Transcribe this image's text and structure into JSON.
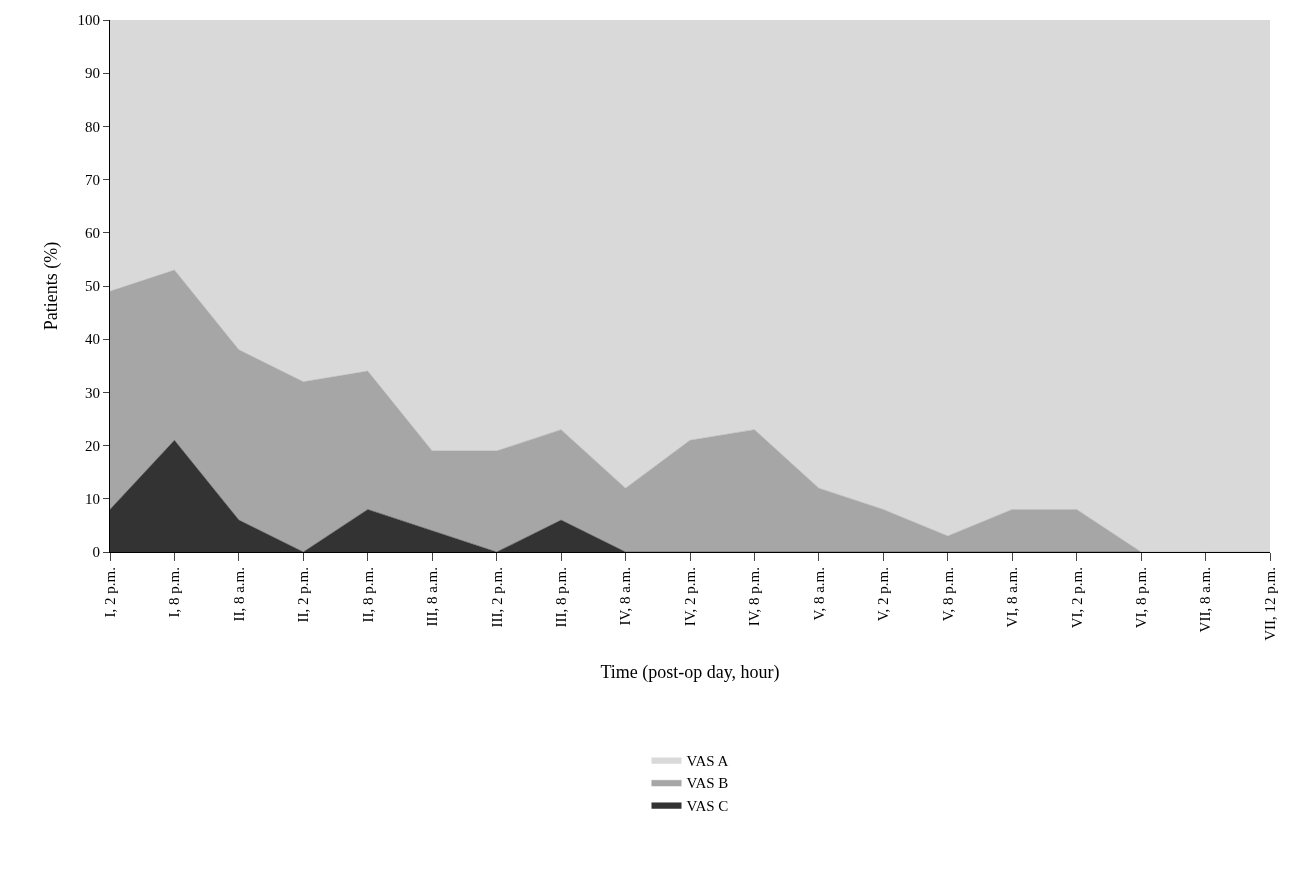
{
  "chart_data": {
    "type": "area",
    "stacked": true,
    "xlabel": "Time (post-op day, hour)",
    "ylabel": "Patients (%)",
    "categories": [
      "I, 2 p.m.",
      "I, 8 p.m.",
      "II, 8 a.m.",
      "II, 2 p.m.",
      "II, 8 p.m.",
      "III, 8 a.m.",
      "III, 2 p.m.",
      "III, 8 p.m.",
      "IV, 8 a.m.",
      "IV, 2 p.m.",
      "IV, 8 p.m.",
      "V, 8 a.m.",
      "V, 2 p.m.",
      "V, 8 p.m.",
      "VI, 8 a.m.",
      "VI, 2 p.m.",
      "VI, 8 p.m.",
      "VII, 8 a.m.",
      "VII, 12 p.m."
    ],
    "series": [
      {
        "name": "VAS C",
        "color": "#333333",
        "values": [
          8,
          21,
          6,
          0,
          8,
          4,
          0,
          6,
          0,
          0,
          0,
          0,
          0,
          0,
          0,
          0,
          0,
          0,
          0
        ]
      },
      {
        "name": "VAS B",
        "color": "#a6a6a6",
        "values": [
          41,
          32,
          32,
          32,
          26,
          15,
          19,
          17,
          12,
          21,
          23,
          12,
          8,
          3,
          8,
          8,
          0,
          0,
          0
        ]
      },
      {
        "name": "VAS A",
        "color": "#d9d9d9",
        "values": [
          51,
          47,
          62,
          68,
          66,
          81,
          81,
          77,
          88,
          79,
          77,
          88,
          92,
          97,
          92,
          92,
          100,
          100,
          100
        ]
      }
    ],
    "ylim": [
      0,
      100
    ],
    "yticks": [
      0,
      10,
      20,
      30,
      40,
      50,
      60,
      70,
      80,
      90,
      100
    ],
    "legend": "bottom"
  }
}
